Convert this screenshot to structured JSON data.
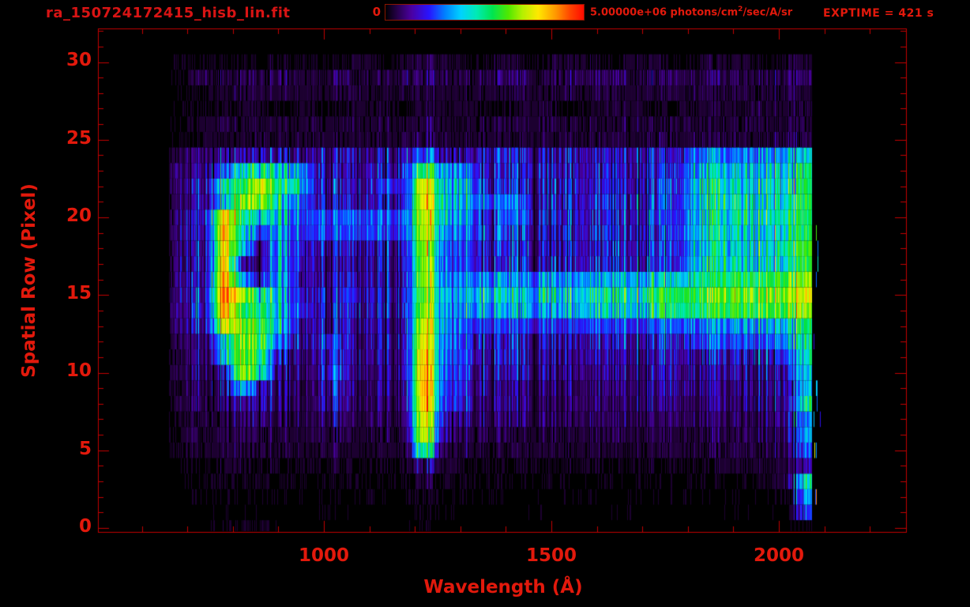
{
  "header": {
    "title": "ra_150724172415_hisb_lin.fit",
    "exptime": "EXPTIME = 421 s"
  },
  "colorbar": {
    "min_label": "0",
    "max_value": "5.00000e+06",
    "units_pre": " photons/cm",
    "units_sup": "2",
    "units_post": "/sec/A/sr"
  },
  "colors": {
    "background": "#000000",
    "axis": "#c40000",
    "label_red": "#e2190c",
    "title_red": "#d81414"
  },
  "chart_data": {
    "type": "heatmap",
    "title": "ra_150724172415_hisb_lin.fit",
    "xlabel": "Wavelength (Å)",
    "ylabel": "Spatial Row (Pixel)",
    "exposure_time_s": 421,
    "value_min": 0,
    "value_max": 5000000,
    "value_scale_max": 5,
    "value_units": "1e6 photons/cm2/sec/A/sr (grid values in units of 1e6)",
    "xlim": [
      503,
      2280
    ],
    "ylim": [
      -0.3,
      32.4
    ],
    "x_ticks_major": [
      1000,
      1500,
      2000
    ],
    "x_tick_labels": [
      "1000",
      "1500",
      "2000"
    ],
    "x_minor_step": 100,
    "y_ticks_major": [
      30,
      25,
      20,
      15,
      10,
      5,
      0
    ],
    "y_tick_labels": [
      "30",
      "25",
      "20",
      "15",
      "10",
      "5",
      "0"
    ],
    "y_minor_step": 1,
    "grid_on": false,
    "legend": "colorbar top center, 0 to 5.00000e+06 photons/cm2/sec/A/sr",
    "wavelength_range": [
      658,
      2072
    ],
    "bin_width_A": 40,
    "wavelength_bins": [
      660,
      700,
      740,
      780,
      820,
      860,
      900,
      940,
      980,
      1020,
      1060,
      1100,
      1140,
      1180,
      1220,
      1260,
      1300,
      1340,
      1380,
      1420,
      1460,
      1500,
      1540,
      1580,
      1620,
      1660,
      1700,
      1740,
      1780,
      1820,
      1860,
      1900,
      1940,
      1980,
      2020,
      2060
    ],
    "grid_row_order": "top-to-bottom, spatial row 30 first down to row 0",
    "grid": [
      [
        0,
        0.2,
        0.3,
        0.2,
        0.3,
        0.2,
        0.3,
        0.2,
        0.3,
        0.2,
        0.3,
        0.3,
        0.2,
        0.3,
        0.4,
        0.3,
        0.3,
        0.2,
        0.3,
        0.3,
        0.2,
        0.3,
        0.3,
        0.3,
        0.2,
        0.3,
        0.3,
        0.3,
        0.2,
        0.3,
        0.3,
        0.3,
        0.3,
        0.2,
        0.3,
        0.3
      ],
      [
        0,
        0.3,
        0.5,
        0.4,
        0.5,
        0.4,
        0.5,
        0.5,
        0.4,
        0.5,
        0.5,
        0.4,
        0.5,
        0.5,
        0.6,
        0.5,
        0.5,
        0.4,
        0.5,
        0.5,
        0.5,
        0.4,
        0.5,
        0.5,
        0.5,
        0.5,
        0.4,
        0.5,
        0.5,
        0.5,
        0.5,
        0.5,
        0.4,
        0.5,
        0.5,
        0.5
      ],
      [
        0,
        0.2,
        0.3,
        0.3,
        0.4,
        0.3,
        0.3,
        0.4,
        0.3,
        0.3,
        0.4,
        0.3,
        0.3,
        0.4,
        0.4,
        0.3,
        0.4,
        0.3,
        0.3,
        0.4,
        0.3,
        0.3,
        0.4,
        0.3,
        0.4,
        0.3,
        0.3,
        0.4,
        0.3,
        0.4,
        0.3,
        0.4,
        0.3,
        0.4,
        0.4,
        0.3
      ],
      [
        0,
        0.2,
        0.3,
        0.2,
        0.3,
        0.3,
        0.2,
        0.3,
        0.3,
        0.2,
        0.3,
        0.3,
        0.3,
        0.2,
        0.4,
        0.3,
        0.3,
        0.3,
        0.2,
        0.3,
        0.3,
        0.3,
        0.2,
        0.3,
        0.3,
        0.3,
        0.3,
        0.2,
        0.3,
        0.3,
        0.3,
        0.3,
        0.4,
        0.3,
        0.3,
        0.4
      ],
      [
        0,
        0.3,
        0.3,
        0.4,
        0.3,
        0.4,
        0.3,
        0.3,
        0.4,
        0.3,
        0.4,
        0.3,
        0.4,
        0.3,
        0.4,
        0.4,
        0.3,
        0.4,
        0.3,
        0.4,
        0.3,
        0.4,
        0.3,
        0.4,
        0.3,
        0.4,
        0.4,
        0.3,
        0.4,
        0.4,
        0.3,
        0.4,
        0.4,
        0.3,
        0.4,
        0.4
      ],
      [
        0,
        0.2,
        0.3,
        0.3,
        0.3,
        0.4,
        0.3,
        0.3,
        0.4,
        0.3,
        0.3,
        0.4,
        0.3,
        0.4,
        0.5,
        0.4,
        0.3,
        0.4,
        0.3,
        0.3,
        0.4,
        0.3,
        0.4,
        0.3,
        0.4,
        0.3,
        0.4,
        0.4,
        0.3,
        0.4,
        0.4,
        0.4,
        0.3,
        0.4,
        0.5,
        0.4
      ],
      [
        0.3,
        0.6,
        0.8,
        0.9,
        0.9,
        0.8,
        0.9,
        0.9,
        0.8,
        0.9,
        0.9,
        0.8,
        0.9,
        1.0,
        1.6,
        1.1,
        1.0,
        0.9,
        0.9,
        1.0,
        0.9,
        0.9,
        1.0,
        0.9,
        0.9,
        1.0,
        1.0,
        0.9,
        1.0,
        1.6,
        1.7,
        1.6,
        1.7,
        1.8,
        1.9,
        2.0
      ],
      [
        0.4,
        0.8,
        0.9,
        1.6,
        2.4,
        2.4,
        2.4,
        2.2,
        1.1,
        0.9,
        0.9,
        1.0,
        0.9,
        1.2,
        3.2,
        2.0,
        2.0,
        1.1,
        0.9,
        1.0,
        1.0,
        0.9,
        1.0,
        1.0,
        0.9,
        1.0,
        1.0,
        1.0,
        1.1,
        2.0,
        2.1,
        2.0,
        2.1,
        2.2,
        2.2,
        2.5
      ],
      [
        0.4,
        0.8,
        1.0,
        2.6,
        2.8,
        3.8,
        2.6,
        2.6,
        1.1,
        1.0,
        1.0,
        1.1,
        1.4,
        1.2,
        4.3,
        2.2,
        2.4,
        1.2,
        1.0,
        1.1,
        1.0,
        1.0,
        1.1,
        1.0,
        1.0,
        1.1,
        1.0,
        1.1,
        1.1,
        2.2,
        2.3,
        2.2,
        2.3,
        2.4,
        2.4,
        2.6
      ],
      [
        0.4,
        0.8,
        1.0,
        2.2,
        3.4,
        3.4,
        2.4,
        1.8,
        1.1,
        1.0,
        1.0,
        1.0,
        1.1,
        1.2,
        4.4,
        2.3,
        2.5,
        1.5,
        1.4,
        1.5,
        1.1,
        1.0,
        1.1,
        1.0,
        1.1,
        1.1,
        1.1,
        1.1,
        1.2,
        2.2,
        2.3,
        2.3,
        2.4,
        2.4,
        2.5,
        2.7
      ],
      [
        0.4,
        0.9,
        1.2,
        4.4,
        2.6,
        2.2,
        2.2,
        1.6,
        1.4,
        1.4,
        1.5,
        1.4,
        1.5,
        1.5,
        4.1,
        2.2,
        2.2,
        1.2,
        1.1,
        1.5,
        1.1,
        1.1,
        1.1,
        1.0,
        1.1,
        1.1,
        1.1,
        1.2,
        1.2,
        2.2,
        2.3,
        2.3,
        2.4,
        2.5,
        2.5,
        2.7
      ],
      [
        0.4,
        0.9,
        1.0,
        4.6,
        2.4,
        1.2,
        2.0,
        1.5,
        1.4,
        1.4,
        1.4,
        1.4,
        1.4,
        1.4,
        4.0,
        2.0,
        1.8,
        1.2,
        1.1,
        1.2,
        1.1,
        1.0,
        1.1,
        1.1,
        1.1,
        1.1,
        1.1,
        1.1,
        1.2,
        2.2,
        2.3,
        2.2,
        2.3,
        2.4,
        2.5,
        2.7
      ],
      [
        0.4,
        0.9,
        0.9,
        4.3,
        2.2,
        0.6,
        2.0,
        1.3,
        1.0,
        1.0,
        1.0,
        1.0,
        1.1,
        1.1,
        3.8,
        1.8,
        1.6,
        1.1,
        1.0,
        1.1,
        1.0,
        1.0,
        1.0,
        1.0,
        1.0,
        1.1,
        1.1,
        1.1,
        1.1,
        2.1,
        2.2,
        2.2,
        2.3,
        2.4,
        2.6,
        3.0
      ],
      [
        0.4,
        0.9,
        0.9,
        4.5,
        0.9,
        0.5,
        2.0,
        1.3,
        0.9,
        0.9,
        0.9,
        0.9,
        1.0,
        1.0,
        3.8,
        1.7,
        1.6,
        1.1,
        1.0,
        1.0,
        1.0,
        1.0,
        1.0,
        1.0,
        1.0,
        1.1,
        1.1,
        1.1,
        1.1,
        2.2,
        2.2,
        2.2,
        2.3,
        2.4,
        2.5,
        2.8
      ],
      [
        0.4,
        1.0,
        1.0,
        4.7,
        2.0,
        0.8,
        2.2,
        1.2,
        0.9,
        0.9,
        1.0,
        0.9,
        1.0,
        1.0,
        3.9,
        1.8,
        2.0,
        1.6,
        1.6,
        1.6,
        1.7,
        1.8,
        1.8,
        1.8,
        1.9,
        2.0,
        2.0,
        2.0,
        2.1,
        2.6,
        2.6,
        2.7,
        2.8,
        3.0,
        3.1,
        3.3
      ],
      [
        0.4,
        1.0,
        1.1,
        4.9,
        3.6,
        2.4,
        2.2,
        1.3,
        1.0,
        1.1,
        1.3,
        1.0,
        1.0,
        1.1,
        3.6,
        2.2,
        2.2,
        2.0,
        2.0,
        2.0,
        2.2,
        2.2,
        2.2,
        2.3,
        2.4,
        2.4,
        2.5,
        2.6,
        2.8,
        3.0,
        3.1,
        3.2,
        3.3,
        3.4,
        3.5,
        3.8
      ],
      [
        0.4,
        1.0,
        1.1,
        4.6,
        2.8,
        2.6,
        2.2,
        1.4,
        1.0,
        1.0,
        1.1,
        1.0,
        1.0,
        1.1,
        3.8,
        2.0,
        2.0,
        1.8,
        1.8,
        1.8,
        2.0,
        2.0,
        2.0,
        2.1,
        2.2,
        2.2,
        2.3,
        2.4,
        2.5,
        2.7,
        2.8,
        2.9,
        3.0,
        3.1,
        3.2,
        3.4
      ],
      [
        0.4,
        0.9,
        1.0,
        4.0,
        3.4,
        2.8,
        2.2,
        1.2,
        0.9,
        0.9,
        1.0,
        0.9,
        0.9,
        1.0,
        4.2,
        2.0,
        1.8,
        1.2,
        1.2,
        1.2,
        1.2,
        1.2,
        1.2,
        1.3,
        1.3,
        1.3,
        1.3,
        1.4,
        1.4,
        1.6,
        1.7,
        1.7,
        1.8,
        2.0,
        2.2,
        2.6
      ],
      [
        0.3,
        0.7,
        0.8,
        2.4,
        3.4,
        3.0,
        1.6,
        1.1,
        0.9,
        1.4,
        0.9,
        0.9,
        0.9,
        1.0,
        4.4,
        1.8,
        1.6,
        1.0,
        0.9,
        1.0,
        0.9,
        0.9,
        0.9,
        0.9,
        0.9,
        1.0,
        0.9,
        1.0,
        1.0,
        1.3,
        1.4,
        1.3,
        1.4,
        1.5,
        1.8,
        2.4
      ],
      [
        0.3,
        0.6,
        0.7,
        2.2,
        3.5,
        2.6,
        1.0,
        0.9,
        0.8,
        1.3,
        0.8,
        0.8,
        0.8,
        0.9,
        4.6,
        1.7,
        1.6,
        0.9,
        0.8,
        0.9,
        0.8,
        0.8,
        0.8,
        0.8,
        0.8,
        0.9,
        0.8,
        0.9,
        0.9,
        0.9,
        1.0,
        0.9,
        1.0,
        1.1,
        1.4,
        2.2
      ],
      [
        0.3,
        0.6,
        0.6,
        1.0,
        3.6,
        2.4,
        0.8,
        0.8,
        0.7,
        1.4,
        0.8,
        0.7,
        0.8,
        0.9,
        4.8,
        1.6,
        1.5,
        0.8,
        0.7,
        0.8,
        0.7,
        0.7,
        0.7,
        0.7,
        0.7,
        0.8,
        0.7,
        0.8,
        0.8,
        0.8,
        0.8,
        0.8,
        0.8,
        0.9,
        1.2,
        2.0
      ],
      [
        0.2,
        0.5,
        0.5,
        0.8,
        2.0,
        1.0,
        0.7,
        0.7,
        0.6,
        1.2,
        0.7,
        0.6,
        0.7,
        0.8,
        4.9,
        1.5,
        1.4,
        0.7,
        0.6,
        0.7,
        0.6,
        0.6,
        0.6,
        0.6,
        0.6,
        0.7,
        0.6,
        0.7,
        0.7,
        0.7,
        0.7,
        0.7,
        0.7,
        0.8,
        1.0,
        1.8
      ],
      [
        0.2,
        0.5,
        0.5,
        0.7,
        0.9,
        0.8,
        0.6,
        0.6,
        0.6,
        1.0,
        0.6,
        0.6,
        0.6,
        0.7,
        4.8,
        1.4,
        1.3,
        0.6,
        0.6,
        0.6,
        0.6,
        0.5,
        0.6,
        0.6,
        0.5,
        0.6,
        0.6,
        0.6,
        0.6,
        0.6,
        0.6,
        0.6,
        0.6,
        0.7,
        0.9,
        2.4
      ],
      [
        0.2,
        0.4,
        0.4,
        0.5,
        0.6,
        0.6,
        0.5,
        0.5,
        0.5,
        0.7,
        0.5,
        0.5,
        0.5,
        0.6,
        4.4,
        1.1,
        1.0,
        0.5,
        0.5,
        0.5,
        0.5,
        0.5,
        0.5,
        0.5,
        0.5,
        0.5,
        0.5,
        0.5,
        0.5,
        0.5,
        0.5,
        0.5,
        0.5,
        0.6,
        0.8,
        1.6
      ],
      [
        0.1,
        0.4,
        0.4,
        0.5,
        0.5,
        0.5,
        0.4,
        0.4,
        0.4,
        0.5,
        0.4,
        0.4,
        0.4,
        0.5,
        4.2,
        0.9,
        0.7,
        0.4,
        0.4,
        0.4,
        0.4,
        0.4,
        0.4,
        0.4,
        0.4,
        0.4,
        0.4,
        0.4,
        0.4,
        0.4,
        0.5,
        0.4,
        0.5,
        0.5,
        0.7,
        1.8
      ],
      [
        0.1,
        0.3,
        0.3,
        0.4,
        0.4,
        0.4,
        0.3,
        0.3,
        0.3,
        0.4,
        0.3,
        0.3,
        0.3,
        0.4,
        3.0,
        0.6,
        0.5,
        0.3,
        0.3,
        0.3,
        0.3,
        0.3,
        0.3,
        0.3,
        0.3,
        0.3,
        0.3,
        0.3,
        0.4,
        0.3,
        0.4,
        0.4,
        0.4,
        0.4,
        0.6,
        1.4
      ],
      [
        0,
        0.2,
        0.25,
        0.3,
        0.3,
        0.25,
        0.25,
        0.2,
        0.25,
        0.3,
        0.25,
        0.2,
        0.25,
        0.3,
        0.8,
        0.4,
        0.3,
        0.25,
        0.2,
        0.25,
        0.25,
        0.2,
        0.25,
        0.25,
        0.2,
        0.25,
        0.25,
        0.25,
        0.3,
        0.25,
        0.3,
        0.3,
        0.3,
        0.3,
        0.4,
        0.8
      ],
      [
        0,
        0.1,
        0.15,
        0.2,
        0.15,
        0.15,
        0.1,
        0.15,
        0.1,
        0.15,
        0.15,
        0.1,
        0.15,
        0.2,
        0.4,
        0.2,
        0.15,
        0.1,
        0.15,
        0.1,
        0.1,
        0.15,
        0.1,
        0.1,
        0.15,
        0.1,
        0.1,
        0.15,
        0.1,
        0.15,
        0.15,
        0.1,
        0.15,
        0.2,
        0.5,
        2.2
      ],
      [
        0,
        0,
        0.1,
        0.1,
        0.1,
        0,
        0.1,
        0,
        0.1,
        0.1,
        0,
        0.1,
        0,
        0.1,
        0.3,
        0.1,
        0.1,
        0,
        0.1,
        0,
        0,
        0.1,
        0,
        0.1,
        0,
        0,
        0.1,
        0,
        0.1,
        0,
        0.1,
        0.1,
        0,
        0.1,
        0.2,
        1.8
      ],
      [
        0,
        0,
        0,
        0.1,
        0.1,
        0.1,
        0,
        0,
        0,
        0.1,
        0,
        0,
        0,
        0,
        0.2,
        0.1,
        0,
        0,
        0,
        0,
        0.1,
        0,
        0,
        0,
        0,
        0.1,
        0,
        0,
        0,
        0,
        0,
        0.1,
        0,
        0,
        0.1,
        1.2
      ],
      [
        0,
        0,
        0,
        0.3,
        0.25,
        0.3,
        0,
        0,
        0,
        0,
        0,
        0,
        0,
        0,
        0.2,
        0,
        0,
        0,
        0,
        0,
        0,
        0,
        0,
        0,
        0,
        0,
        0,
        0,
        0,
        0,
        0,
        0,
        0,
        0,
        0,
        0.2
      ]
    ],
    "features": [
      {
        "name": "ring-shaped-emission-blob",
        "wavelength_A": [
          760,
          960
        ],
        "rows": [
          11,
          24
        ],
        "note": "red arc ~4.8e6 at 765-800 A rows 14-20, dark hole rows 15-18 at 830-890 A, yellow spots top/bottom of ring"
      },
      {
        "name": "lyman-alpha-line",
        "wavelength_A": [
          1195,
          1245
        ],
        "rows": [
          5,
          24
        ],
        "note": "bright red ~5e6 at rows 6-11 and 19-23, orange rows 12-18"
      },
      {
        "name": "secondary-emission-column",
        "wavelength_A": [
          1285,
          1330
        ],
        "rows": [
          5,
          23
        ],
        "note": "cyan-green vertical band"
      },
      {
        "name": "horizontal-green-band",
        "wavelength_A": [
          1260,
          2072
        ],
        "rows": [
          13,
          17
        ],
        "note": "brightens toward long wavelengths, yellow-green near 2060 A"
      },
      {
        "name": "bright-long-wavelength-edge",
        "wavelength_A": [
          2020,
          2072
        ],
        "rows": [
          1,
          24
        ],
        "note": "green column with red specks at data edge"
      },
      {
        "name": "background-speckle",
        "wavelength_A": [
          660,
          2072
        ],
        "rows": [
          0,
          30
        ],
        "note": "noisy vertical striping; blue rows 4-24, faint purple rows 25-30 and 0-4"
      }
    ]
  }
}
